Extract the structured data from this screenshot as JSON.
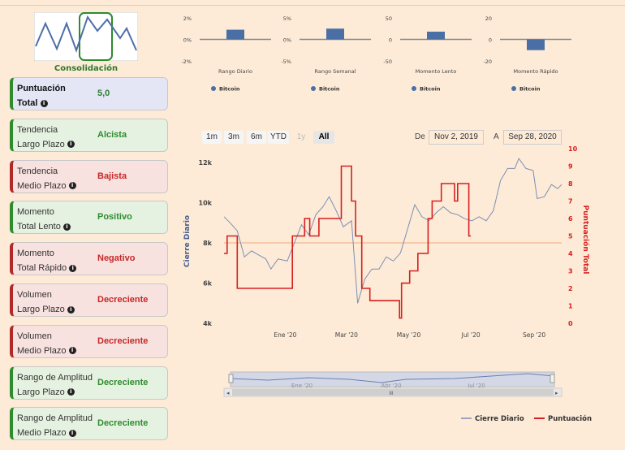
{
  "thumbnail": {
    "label": "Consolidación"
  },
  "cards": [
    {
      "label_1": "Puntuación",
      "label_2": "Total",
      "value": "5,0",
      "tone": "neu"
    },
    {
      "label_1": "Tendencia",
      "label_2": "Largo Plazo",
      "value": "Alcista",
      "tone": "pos"
    },
    {
      "label_1": "Tendencia",
      "label_2": "Medio Plazo",
      "value": "Bajista",
      "tone": "neg"
    },
    {
      "label_1": "Momento",
      "label_2": "Total Lento",
      "value": "Positivo",
      "tone": "pos"
    },
    {
      "label_1": "Momento",
      "label_2": "Total Rápido",
      "value": "Negativo",
      "tone": "neg"
    },
    {
      "label_1": "Volumen",
      "label_2": "Largo Plazo",
      "value": "Decreciente",
      "tone": "neg"
    },
    {
      "label_1": "Volumen",
      "label_2": "Medio Plazo",
      "value": "Decreciente",
      "tone": "neg"
    },
    {
      "label_1": "Rango de Amplitud",
      "label_2": "Largo Plazo",
      "value": "Decreciente",
      "tone": "pos"
    },
    {
      "label_1": "Rango de Amplitud",
      "label_2": "Medio Plazo",
      "value": "Decreciente",
      "tone": "pos"
    }
  ],
  "range_selector": {
    "buttons": [
      "1m",
      "3m",
      "6m",
      "YTD",
      "1y",
      "All"
    ],
    "selected": "All",
    "from_label": "De",
    "from_value": "Nov 2, 2019",
    "to_label": "A",
    "to_value": "Sep 28, 2020"
  },
  "colors": {
    "price": "#7a8fb5",
    "score": "#d62020",
    "bar": "#4a6fa5",
    "positive": "#2e8b2e",
    "negative": "#c62828"
  },
  "chart_data": [
    {
      "type": "bar",
      "title": "",
      "xlabel": "Rango Diario",
      "ylim": [
        -2,
        2
      ],
      "yticks": [
        "2%",
        "0%",
        "-2%"
      ],
      "series": [
        {
          "name": "Bitcoin",
          "values": [
            0.9
          ]
        }
      ]
    },
    {
      "type": "bar",
      "title": "",
      "xlabel": "Rango Semanal",
      "ylim": [
        -5,
        5
      ],
      "yticks": [
        "5%",
        "0%",
        "-5%"
      ],
      "series": [
        {
          "name": "Bitcoin",
          "values": [
            2.5
          ]
        }
      ]
    },
    {
      "type": "bar",
      "title": "",
      "xlabel": "Momento Lento",
      "ylim": [
        -50,
        50
      ],
      "yticks": [
        "50",
        "0",
        "-50"
      ],
      "series": [
        {
          "name": "Bitcoin",
          "values": [
            18
          ]
        }
      ]
    },
    {
      "type": "bar",
      "title": "",
      "xlabel": "Momento Rápido",
      "ylim": [
        -20,
        20
      ],
      "yticks": [
        "20",
        "0",
        "-20"
      ],
      "series": [
        {
          "name": "Bitcoin",
          "values": [
            -10
          ]
        }
      ]
    },
    {
      "type": "line",
      "ylabel": "Cierre Diario",
      "y2label": "Puntuación Total",
      "ylim": [
        4000,
        12000
      ],
      "y2lim": [
        0,
        10
      ],
      "yticks": [
        "12k",
        "10k",
        "8k",
        "6k",
        "4k"
      ],
      "y2ticks": [
        "10",
        "9",
        "8",
        "7",
        "6",
        "5",
        "4",
        "3",
        "2",
        "1",
        "0"
      ],
      "x_start": "2019-11-02",
      "x_end": "2020-09-28",
      "xticks": [
        {
          "label": "Ene '20",
          "date": "2020-01-01"
        },
        {
          "label": "Mar '20",
          "date": "2020-03-01"
        },
        {
          "label": "May '20",
          "date": "2020-05-01"
        },
        {
          "label": "Jul '20",
          "date": "2020-07-01"
        },
        {
          "label": "Sep '20",
          "date": "2020-09-01"
        }
      ],
      "navigator_ticks": [
        "Ene '20",
        "Abr '20",
        "Jul '20"
      ],
      "legend_position": "bottom-right",
      "reference_level": 8000,
      "series": [
        {
          "name": "Cierre Diario",
          "axis": "left",
          "points": [
            [
              "2019-11-02",
              9300
            ],
            [
              "2019-11-08",
              9000
            ],
            [
              "2019-11-15",
              8600
            ],
            [
              "2019-11-22",
              7300
            ],
            [
              "2019-11-29",
              7600
            ],
            [
              "2019-12-06",
              7400
            ],
            [
              "2019-12-13",
              7200
            ],
            [
              "2019-12-18",
              6700
            ],
            [
              "2019-12-25",
              7200
            ],
            [
              "2020-01-03",
              7100
            ],
            [
              "2020-01-10",
              8000
            ],
            [
              "2020-01-17",
              8900
            ],
            [
              "2020-01-24",
              8400
            ],
            [
              "2020-01-31",
              9400
            ],
            [
              "2020-02-07",
              9800
            ],
            [
              "2020-02-13",
              10300
            ],
            [
              "2020-02-20",
              9600
            ],
            [
              "2020-02-27",
              8800
            ],
            [
              "2020-03-06",
              9100
            ],
            [
              "2020-03-12",
              5000
            ],
            [
              "2020-03-19",
              6200
            ],
            [
              "2020-03-26",
              6700
            ],
            [
              "2020-04-02",
              6700
            ],
            [
              "2020-04-09",
              7300
            ],
            [
              "2020-04-16",
              7100
            ],
            [
              "2020-04-23",
              7500
            ],
            [
              "2020-04-30",
              8700
            ],
            [
              "2020-05-07",
              9900
            ],
            [
              "2020-05-14",
              9300
            ],
            [
              "2020-05-21",
              9100
            ],
            [
              "2020-05-28",
              9500
            ],
            [
              "2020-06-04",
              9800
            ],
            [
              "2020-06-11",
              9500
            ],
            [
              "2020-06-18",
              9400
            ],
            [
              "2020-06-25",
              9200
            ],
            [
              "2020-07-02",
              9100
            ],
            [
              "2020-07-09",
              9300
            ],
            [
              "2020-07-16",
              9100
            ],
            [
              "2020-07-23",
              9600
            ],
            [
              "2020-07-30",
              11100
            ],
            [
              "2020-08-06",
              11700
            ],
            [
              "2020-08-13",
              11700
            ],
            [
              "2020-08-17",
              12200
            ],
            [
              "2020-08-24",
              11700
            ],
            [
              "2020-08-31",
              11600
            ],
            [
              "2020-09-04",
              10200
            ],
            [
              "2020-09-11",
              10300
            ],
            [
              "2020-09-18",
              10900
            ],
            [
              "2020-09-24",
              10700
            ],
            [
              "2020-09-28",
              10900
            ]
          ]
        },
        {
          "name": "Puntuación",
          "axis": "right",
          "step": true,
          "points": [
            [
              "2019-11-02",
              4
            ],
            [
              "2019-11-05",
              5
            ],
            [
              "2019-11-15",
              2
            ],
            [
              "2019-12-28",
              2
            ],
            [
              "2020-01-08",
              5
            ],
            [
              "2020-01-20",
              6
            ],
            [
              "2020-01-25",
              5
            ],
            [
              "2020-02-03",
              6
            ],
            [
              "2020-02-25",
              9
            ],
            [
              "2020-03-06",
              7
            ],
            [
              "2020-03-10",
              5
            ],
            [
              "2020-03-16",
              2
            ],
            [
              "2020-03-24",
              1.3
            ],
            [
              "2020-04-22",
              0.3
            ],
            [
              "2020-04-24",
              2.3
            ],
            [
              "2020-05-02",
              3
            ],
            [
              "2020-05-10",
              4
            ],
            [
              "2020-05-20",
              6
            ],
            [
              "2020-05-24",
              7
            ],
            [
              "2020-06-02",
              8
            ],
            [
              "2020-06-15",
              7
            ],
            [
              "2020-06-18",
              8
            ],
            [
              "2020-06-29",
              5
            ],
            [
              "2020-07-01",
              5
            ]
          ]
        }
      ]
    }
  ]
}
